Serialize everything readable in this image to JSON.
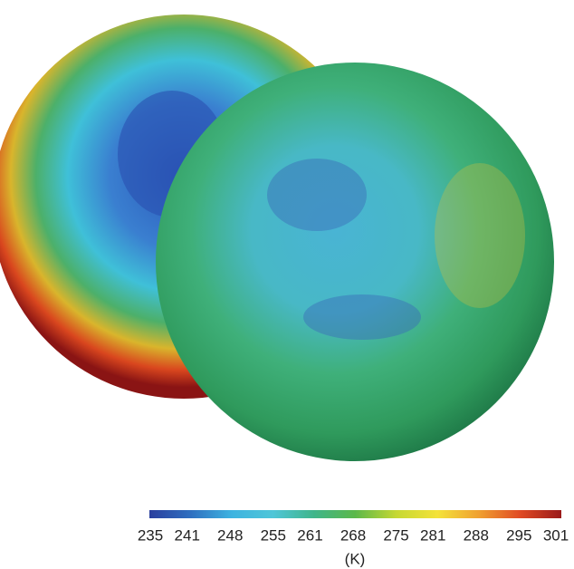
{
  "colorbar": {
    "ticks": [
      235,
      241,
      248,
      255,
      261,
      268,
      275,
      281,
      288,
      295,
      301
    ],
    "label": "(K)",
    "colors": [
      "#2b3f9e",
      "#2f6fc0",
      "#3db3e0",
      "#4fc6d8",
      "#3fb58a",
      "#5cb84a",
      "#c6d832",
      "#f4e23a",
      "#f0a030",
      "#e04a24",
      "#9a1a1a"
    ]
  }
}
